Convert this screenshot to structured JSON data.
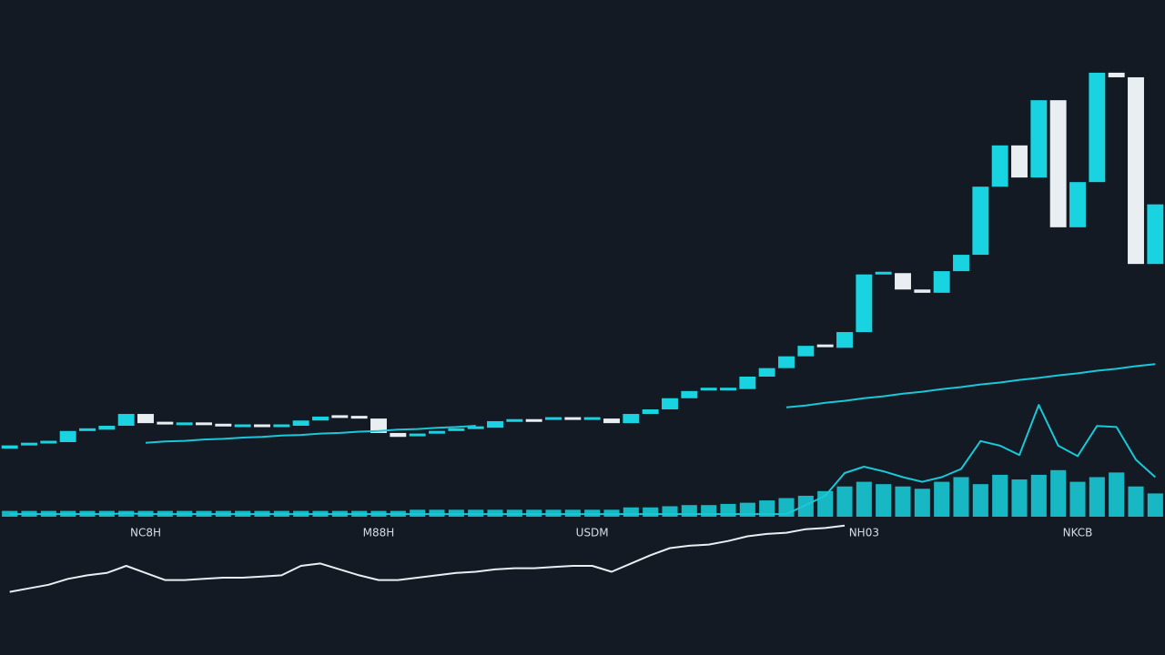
{
  "chart_data": [
    {
      "type": "candlestick",
      "categories": [
        null,
        null,
        null,
        null,
        null,
        null,
        null,
        "NC8H",
        null,
        null,
        null,
        null,
        null,
        null,
        null,
        null,
        null,
        null,
        null,
        "M88H",
        null,
        null,
        null,
        null,
        null,
        null,
        null,
        null,
        null,
        null,
        "USDM",
        null,
        null,
        null,
        null,
        null,
        null,
        null,
        null,
        null,
        null,
        null,
        null,
        null,
        "NH03",
        null,
        null,
        null,
        null,
        null,
        null,
        null,
        null,
        null,
        null,
        "NKCB",
        null,
        null,
        null,
        null
      ],
      "open": [
        31.5,
        32,
        32.2,
        32.5,
        34.2,
        34.4,
        35,
        36.8,
        35.4,
        35,
        35.3,
        35.1,
        35,
        35,
        34.9,
        35,
        35.8,
        36.4,
        36.3,
        36.1,
        33.9,
        33.3,
        33.6,
        34,
        34.4,
        34.7,
        35.7,
        35.8,
        35.7,
        36.1,
        35.8,
        36.1,
        35.4,
        36.8,
        37.5,
        39.2,
        40.3,
        40.6,
        40.6,
        42.5,
        43.8,
        45.6,
        47.2,
        46.9,
        49.3,
        58.1,
        58.3,
        55.8,
        55.3,
        58.6,
        61.1,
        71.5,
        77.8,
        72.9,
        84.7,
        65.3,
        72.2,
        88.9,
        88.2,
        59.7
      ],
      "close": [
        32,
        32.2,
        32.5,
        34.2,
        34.4,
        35,
        36.8,
        35.4,
        35,
        35.3,
        35.1,
        35,
        35,
        34.9,
        35,
        35.8,
        36.4,
        36.3,
        36.1,
        33.9,
        33.3,
        33.6,
        34,
        34.4,
        34.7,
        35.7,
        35.8,
        35.7,
        36.1,
        35.8,
        36.1,
        35.4,
        36.8,
        37.5,
        39.2,
        40.3,
        40.6,
        40.6,
        42.5,
        43.8,
        45.6,
        47.2,
        46.9,
        49.3,
        58.1,
        58.3,
        55.8,
        55.3,
        58.6,
        61.1,
        71.5,
        77.8,
        72.9,
        84.7,
        65.3,
        72.2,
        88.9,
        88.2,
        59.7,
        68.8
      ],
      "ma": [
        null,
        null,
        null,
        null,
        null,
        null,
        null,
        32.4,
        32.6,
        32.7,
        32.9,
        33.0,
        33.2,
        33.3,
        33.5,
        33.6,
        33.8,
        33.9,
        34.1,
        34.2,
        34.4,
        34.5,
        34.7,
        34.8,
        35.0,
        null,
        null,
        null,
        null,
        null,
        null,
        null,
        null,
        null,
        null,
        null,
        null,
        null,
        null,
        null,
        37.8,
        38.1,
        38.5,
        38.8,
        39.2,
        39.5,
        39.9,
        40.2,
        40.6,
        40.9,
        41.3,
        41.6,
        42.0,
        42.3,
        42.7,
        43.0,
        43.4,
        43.7,
        44.1,
        44.4
      ],
      "up_color": "#19d3e0",
      "down_color": "#e8eef2",
      "ma_color": "#19c8d8",
      "ylim": [
        0,
        100
      ]
    },
    {
      "type": "bar",
      "values": [
        5,
        5,
        5,
        5,
        5,
        5,
        5,
        5,
        5,
        5,
        5,
        5,
        5,
        5,
        5,
        5,
        5,
        5,
        5,
        5,
        5,
        6,
        6,
        6,
        6,
        6,
        6,
        6,
        6,
        6,
        6,
        6,
        8,
        8,
        9,
        10,
        10,
        11,
        12,
        14,
        16,
        18,
        22,
        26,
        30,
        28,
        26,
        24,
        30,
        34,
        28,
        36,
        32,
        36,
        40,
        30,
        34,
        38,
        26,
        20
      ],
      "overlay": [
        2.3,
        2.3,
        2.3,
        2.3,
        2.3,
        2.3,
        3,
        2.3,
        2.3,
        2.3,
        2.3,
        2.3,
        2.3,
        2.3,
        2.3,
        2.3,
        2.3,
        2.3,
        2.3,
        2.3,
        2.3,
        2.3,
        2.3,
        2.3,
        2.3,
        2.3,
        2.3,
        2.3,
        2.3,
        2.3,
        2.3,
        2.3,
        2.3,
        2.3,
        2.3,
        2.3,
        2.3,
        2.3,
        2.3,
        2.3,
        2.3,
        10,
        18,
        37.5,
        43,
        39,
        34,
        30,
        34,
        41,
        65,
        61,
        53,
        96,
        61,
        52,
        78,
        77,
        49,
        34
      ],
      "color": "#19d3e0",
      "overlay_color": "#19c8d8",
      "ylim": [
        0,
        100
      ]
    },
    {
      "type": "line",
      "values": [
        38,
        41,
        44,
        49,
        52,
        54,
        60,
        54,
        48,
        48,
        49,
        50,
        50,
        51,
        52,
        60,
        62,
        57,
        52,
        48,
        48,
        50,
        52,
        54,
        55,
        57,
        58,
        58,
        59,
        60,
        60,
        55,
        62,
        69,
        75,
        77,
        78,
        81,
        85,
        87,
        88,
        91,
        92,
        94,
        null,
        null,
        null,
        null,
        null,
        null,
        null,
        null,
        null,
        null,
        null,
        null,
        null,
        null,
        null,
        null
      ],
      "color": "#e8eef2",
      "ylim": [
        0,
        100
      ]
    }
  ]
}
